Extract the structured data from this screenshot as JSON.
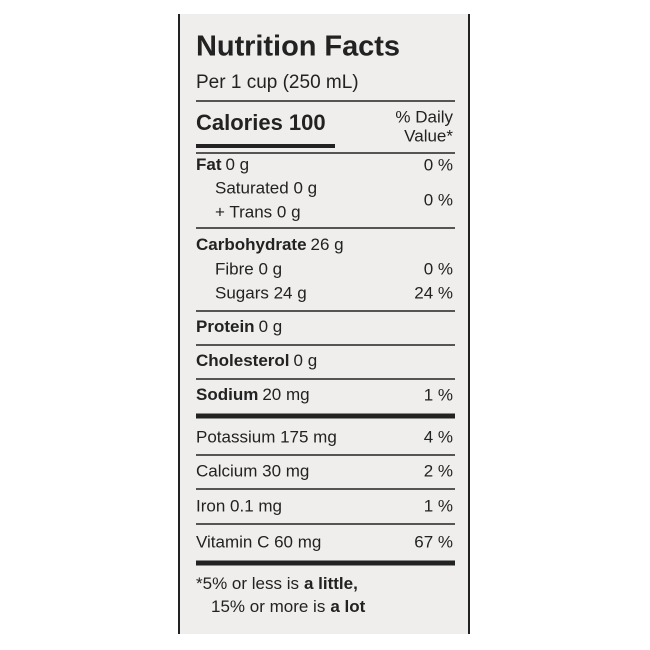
{
  "header": {
    "title": "Nutrition Facts",
    "serving": "Per 1 cup (250 mL)"
  },
  "calories": {
    "label": "Calories 100",
    "dv_heading_1": "% Daily",
    "dv_heading_2": "Value*"
  },
  "fat": {
    "label": "Fat",
    "amount": "0 g",
    "dv": "0 %",
    "saturated": "Saturated 0 g",
    "trans": "+ Trans 0 g",
    "sat_trans_dv": "0 %"
  },
  "carbohydrate": {
    "label": "Carbohydrate",
    "amount": "26 g",
    "fibre": "Fibre 0 g",
    "fibre_dv": "0 %",
    "sugars": "Sugars 24 g",
    "sugars_dv": "24 %"
  },
  "protein": {
    "label": "Protein",
    "amount": "0 g"
  },
  "cholesterol": {
    "label": "Cholesterol",
    "amount": "0 g"
  },
  "sodium": {
    "label": "Sodium",
    "amount": "20 mg",
    "dv": "1 %"
  },
  "minerals": [
    {
      "text": "Potassium 175 mg",
      "dv": "4 %"
    },
    {
      "text": "Calcium 30 mg",
      "dv": "2 %"
    },
    {
      "text": "Iron 0.1 mg",
      "dv": "1 %"
    },
    {
      "text": "Vitamin C 60 mg",
      "dv": "67 %"
    }
  ],
  "footnote": {
    "line1": "*5% or less is",
    "line1_bold": "a little,",
    "line2": "15% or more is",
    "line2_bold": "a lot"
  }
}
